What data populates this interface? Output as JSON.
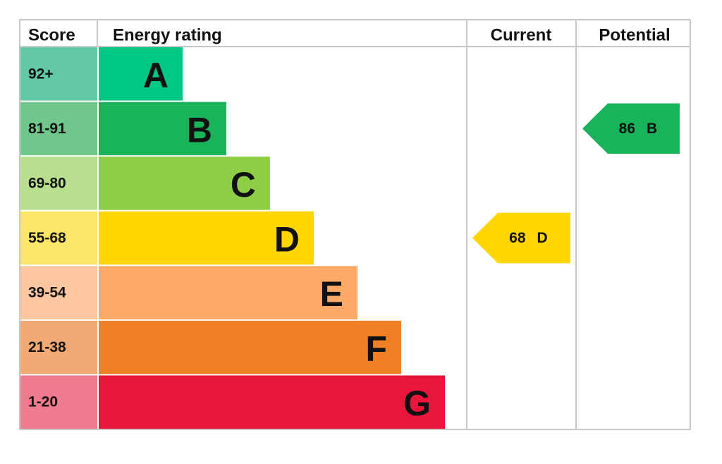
{
  "header": {
    "score": "Score",
    "energy_rating": "Energy rating",
    "current": "Current",
    "potential": "Potential"
  },
  "bands": [
    {
      "score_range": "92+",
      "letter": "A",
      "color": "#00c781",
      "score_color": "#63c8a4"
    },
    {
      "score_range": "81-91",
      "letter": "B",
      "color": "#19b459",
      "score_color": "#70c78c"
    },
    {
      "score_range": "69-80",
      "letter": "C",
      "color": "#8dce46",
      "score_color": "#b8df8d"
    },
    {
      "score_range": "55-68",
      "letter": "D",
      "color": "#ffd500",
      "score_color": "#fde56a"
    },
    {
      "score_range": "39-54",
      "letter": "E",
      "color": "#fcaa65",
      "score_color": "#fbc6a0"
    },
    {
      "score_range": "21-38",
      "letter": "F",
      "color": "#ef8023",
      "score_color": "#f2a973"
    },
    {
      "score_range": "1-20",
      "letter": "G",
      "color": "#e9153b",
      "score_color": "#ef7b8f"
    }
  ],
  "current": {
    "value": 68,
    "rating": "D"
  },
  "potential": {
    "value": 86,
    "rating": "B"
  }
}
